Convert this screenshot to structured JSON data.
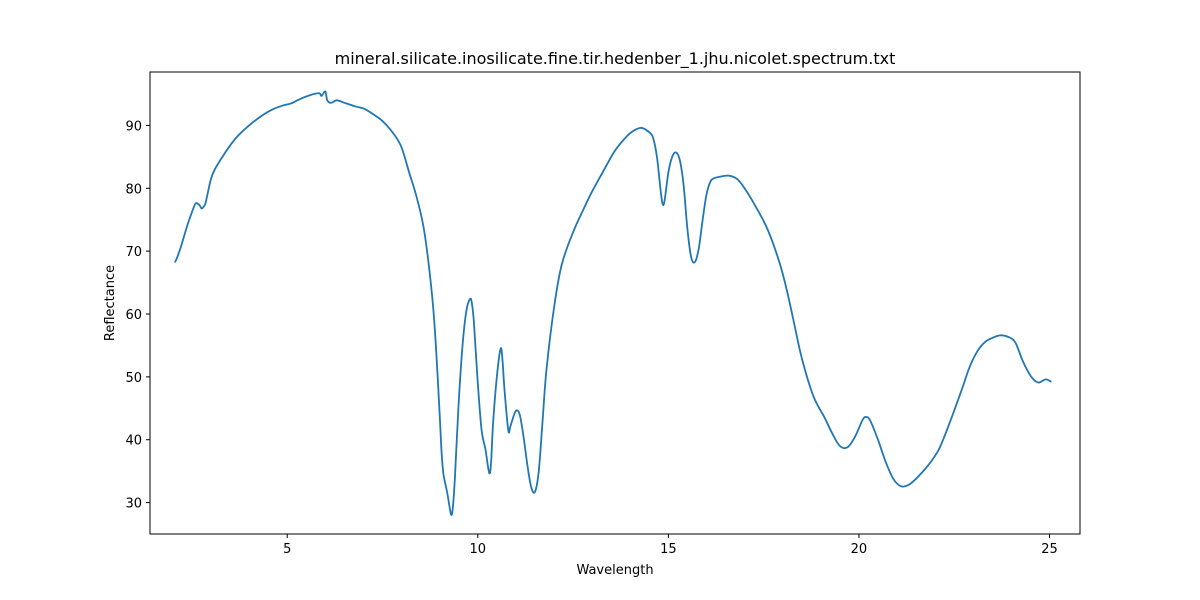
{
  "chart_data": {
    "type": "line",
    "title": "mineral.silicate.inosilicate.fine.tir.hedenber_1.jhu.nicolet.spectrum.txt",
    "xlabel": "Wavelength",
    "ylabel": "Reflectance",
    "xlim": [
      1.4,
      25.8
    ],
    "ylim": [
      25,
      98.5
    ],
    "xticks": [
      5,
      10,
      15,
      20,
      25
    ],
    "yticks": [
      30,
      40,
      50,
      60,
      70,
      80,
      90
    ],
    "grid": false,
    "series": [
      {
        "color": "#1f77b4",
        "x": [
          2.05,
          2.1,
          2.2,
          2.3,
          2.4,
          2.5,
          2.6,
          2.7,
          2.75,
          2.8,
          2.85,
          2.9,
          3.0,
          3.1,
          3.3,
          3.5,
          3.7,
          4.0,
          4.3,
          4.6,
          4.9,
          5.1,
          5.3,
          5.5,
          5.7,
          5.85,
          5.9,
          6.0,
          6.05,
          6.15,
          6.3,
          6.5,
          6.8,
          7.0,
          7.2,
          7.5,
          7.8,
          8.0,
          8.2,
          8.4,
          8.6,
          8.8,
          8.9,
          9.0,
          9.05,
          9.1,
          9.2,
          9.3,
          9.35,
          9.4,
          9.5,
          9.6,
          9.7,
          9.8,
          9.85,
          9.9,
          10.0,
          10.1,
          10.2,
          10.3,
          10.35,
          10.4,
          10.5,
          10.6,
          10.65,
          10.7,
          10.8,
          10.85,
          10.9,
          11.0,
          11.1,
          11.2,
          11.3,
          11.4,
          11.5,
          11.6,
          11.7,
          11.8,
          12.0,
          12.2,
          12.5,
          12.8,
          13.0,
          13.3,
          13.6,
          13.9,
          14.1,
          14.3,
          14.5,
          14.6,
          14.7,
          14.8,
          14.85,
          14.9,
          15.0,
          15.1,
          15.2,
          15.3,
          15.4,
          15.5,
          15.6,
          15.7,
          15.8,
          15.9,
          16.0,
          16.1,
          16.2,
          16.4,
          16.6,
          16.8,
          17.0,
          17.3,
          17.6,
          17.9,
          18.1,
          18.3,
          18.5,
          18.8,
          19.1,
          19.3,
          19.5,
          19.7,
          19.9,
          20.1,
          20.2,
          20.3,
          20.5,
          20.7,
          20.9,
          21.1,
          21.3,
          21.5,
          21.8,
          22.1,
          22.4,
          22.7,
          22.9,
          23.1,
          23.3,
          23.5,
          23.7,
          23.9,
          24.1,
          24.3,
          24.5,
          24.7,
          24.9,
          25.05
        ],
        "y": [
          68.2,
          68.8,
          70.5,
          72.5,
          74.5,
          76.2,
          77.6,
          77.3,
          76.8,
          77.0,
          77.5,
          78.8,
          81.5,
          83.0,
          85.0,
          86.8,
          88.3,
          90.0,
          91.4,
          92.5,
          93.2,
          93.5,
          94.1,
          94.6,
          95.0,
          95.1,
          94.7,
          95.4,
          94.0,
          93.6,
          94.0,
          93.6,
          93.0,
          92.7,
          92.0,
          90.7,
          88.6,
          86.5,
          82.5,
          78.5,
          73.0,
          63.0,
          55.0,
          44.0,
          38.0,
          34.5,
          31.5,
          28.1,
          29.5,
          34.0,
          46.0,
          55.0,
          60.5,
          62.4,
          61.5,
          58.5,
          49.0,
          41.5,
          38.5,
          34.7,
          36.5,
          42.5,
          50.0,
          54.5,
          52.5,
          48.0,
          41.5,
          42.0,
          43.0,
          44.6,
          44.0,
          40.5,
          36.0,
          32.5,
          31.7,
          35.0,
          43.0,
          51.0,
          61.0,
          67.8,
          73.0,
          77.0,
          79.5,
          82.8,
          86.0,
          88.2,
          89.2,
          89.6,
          88.9,
          88.0,
          85.0,
          79.5,
          77.5,
          78.0,
          82.5,
          85.0,
          85.7,
          84.5,
          80.5,
          73.5,
          69.0,
          68.3,
          70.5,
          75.0,
          79.0,
          81.0,
          81.6,
          81.9,
          82.0,
          81.5,
          80.0,
          77.0,
          73.5,
          68.5,
          64.0,
          58.5,
          53.0,
          47.0,
          43.5,
          41.0,
          39.0,
          38.8,
          40.5,
          43.2,
          43.6,
          43.0,
          40.0,
          36.5,
          33.8,
          32.6,
          32.8,
          33.8,
          35.8,
          38.5,
          43.0,
          48.0,
          51.5,
          54.0,
          55.5,
          56.2,
          56.6,
          56.4,
          55.5,
          52.5,
          50.2,
          49.1,
          49.6,
          49.2
        ]
      }
    ]
  }
}
